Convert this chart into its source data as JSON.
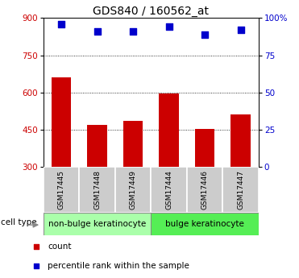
{
  "title": "GDS840 / 160562_at",
  "samples": [
    "GSM17445",
    "GSM17448",
    "GSM17449",
    "GSM17444",
    "GSM17446",
    "GSM17447"
  ],
  "counts": [
    660,
    470,
    485,
    595,
    452,
    510
  ],
  "percentiles": [
    96,
    91,
    91,
    94,
    89,
    92
  ],
  "ylim_left": [
    300,
    900
  ],
  "ylim_right": [
    0,
    100
  ],
  "yticks_left": [
    300,
    450,
    600,
    750,
    900
  ],
  "yticks_right": [
    0,
    25,
    50,
    75,
    100
  ],
  "yticklabels_right": [
    "0",
    "25",
    "50",
    "75",
    "100%"
  ],
  "bar_color": "#cc0000",
  "scatter_color": "#0000cc",
  "group1_label": "non-bulge keratinocyte",
  "group2_label": "bulge keratinocyte",
  "group1_color": "#aaffaa",
  "group2_color": "#55ee55",
  "cell_type_label": "cell type",
  "legend_count_label": "count",
  "legend_percentile_label": "percentile rank within the sample",
  "title_fontsize": 10,
  "tick_fontsize": 7.5,
  "label_fontsize": 7.5,
  "sample_label_fontsize": 6.5,
  "group_label_fontsize": 7.5,
  "legend_fontsize": 7.5
}
